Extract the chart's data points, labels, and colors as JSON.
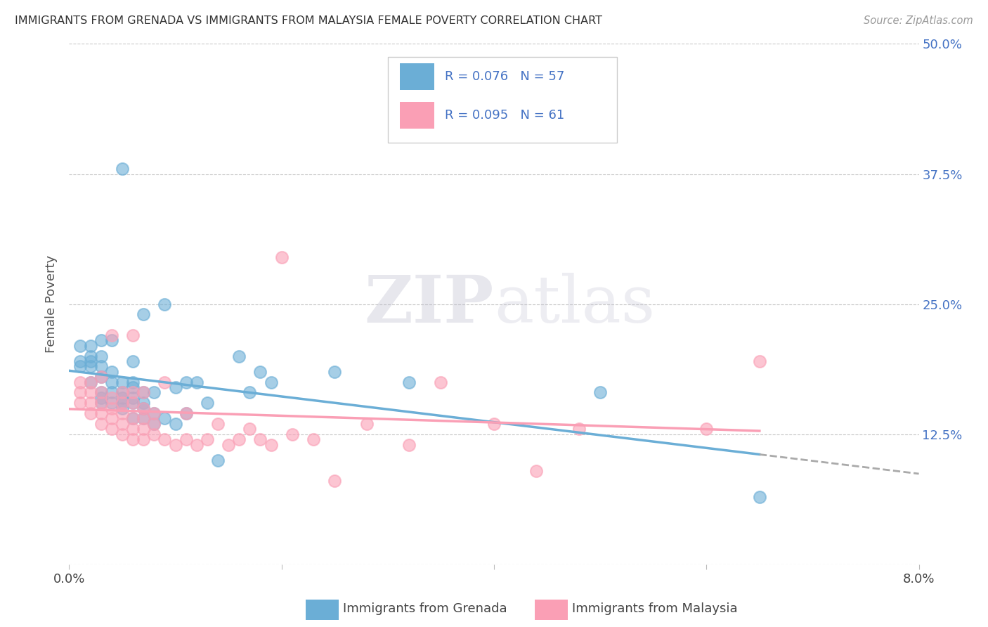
{
  "title": "IMMIGRANTS FROM GRENADA VS IMMIGRANTS FROM MALAYSIA FEMALE POVERTY CORRELATION CHART",
  "source_text": "Source: ZipAtlas.com",
  "ylabel": "Female Poverty",
  "xlim": [
    0.0,
    0.08
  ],
  "ylim": [
    0.0,
    0.5
  ],
  "xticks": [
    0.0,
    0.02,
    0.04,
    0.06,
    0.08
  ],
  "xticklabels": [
    "0.0%",
    "",
    "",
    "",
    "8.0%"
  ],
  "yticks": [
    0.0,
    0.125,
    0.25,
    0.375,
    0.5
  ],
  "yticklabels_right": [
    "",
    "12.5%",
    "25.0%",
    "37.5%",
    "50.0%"
  ],
  "grenada_color": "#6baed6",
  "malaysia_color": "#fa9fb5",
  "grenada_R": 0.076,
  "grenada_N": 57,
  "malaysia_R": 0.095,
  "malaysia_N": 61,
  "watermark": "ZIPatlas",
  "background_color": "#ffffff",
  "grid_color": "#c8c8c8",
  "legend_label_grenada": "Immigrants from Grenada",
  "legend_label_malaysia": "Immigrants from Malaysia",
  "tick_label_color": "#4472c4",
  "grenada_scatter_x": [
    0.001,
    0.001,
    0.001,
    0.002,
    0.002,
    0.002,
    0.002,
    0.002,
    0.003,
    0.003,
    0.003,
    0.003,
    0.003,
    0.003,
    0.003,
    0.004,
    0.004,
    0.004,
    0.004,
    0.004,
    0.005,
    0.005,
    0.005,
    0.005,
    0.005,
    0.005,
    0.006,
    0.006,
    0.006,
    0.006,
    0.006,
    0.006,
    0.007,
    0.007,
    0.007,
    0.007,
    0.007,
    0.008,
    0.008,
    0.008,
    0.009,
    0.009,
    0.01,
    0.01,
    0.011,
    0.011,
    0.012,
    0.013,
    0.014,
    0.016,
    0.017,
    0.018,
    0.019,
    0.025,
    0.032,
    0.05,
    0.065
  ],
  "grenada_scatter_y": [
    0.19,
    0.195,
    0.21,
    0.175,
    0.19,
    0.195,
    0.2,
    0.21,
    0.155,
    0.16,
    0.165,
    0.18,
    0.19,
    0.2,
    0.215,
    0.155,
    0.165,
    0.175,
    0.185,
    0.215,
    0.15,
    0.155,
    0.16,
    0.165,
    0.175,
    0.38,
    0.14,
    0.155,
    0.16,
    0.17,
    0.175,
    0.195,
    0.14,
    0.15,
    0.155,
    0.165,
    0.24,
    0.135,
    0.145,
    0.165,
    0.14,
    0.25,
    0.135,
    0.17,
    0.145,
    0.175,
    0.175,
    0.155,
    0.1,
    0.2,
    0.165,
    0.185,
    0.175,
    0.185,
    0.175,
    0.165,
    0.065
  ],
  "malaysia_scatter_x": [
    0.001,
    0.001,
    0.001,
    0.002,
    0.002,
    0.002,
    0.002,
    0.003,
    0.003,
    0.003,
    0.003,
    0.003,
    0.004,
    0.004,
    0.004,
    0.004,
    0.004,
    0.005,
    0.005,
    0.005,
    0.005,
    0.005,
    0.006,
    0.006,
    0.006,
    0.006,
    0.006,
    0.006,
    0.007,
    0.007,
    0.007,
    0.007,
    0.007,
    0.008,
    0.008,
    0.008,
    0.009,
    0.009,
    0.01,
    0.011,
    0.011,
    0.012,
    0.013,
    0.014,
    0.015,
    0.016,
    0.017,
    0.018,
    0.019,
    0.02,
    0.021,
    0.023,
    0.025,
    0.028,
    0.032,
    0.035,
    0.04,
    0.044,
    0.048,
    0.06,
    0.065
  ],
  "malaysia_scatter_y": [
    0.155,
    0.165,
    0.175,
    0.145,
    0.155,
    0.165,
    0.175,
    0.135,
    0.145,
    0.155,
    0.165,
    0.18,
    0.13,
    0.14,
    0.15,
    0.16,
    0.22,
    0.125,
    0.135,
    0.145,
    0.155,
    0.165,
    0.12,
    0.13,
    0.14,
    0.155,
    0.165,
    0.22,
    0.12,
    0.13,
    0.14,
    0.15,
    0.165,
    0.125,
    0.135,
    0.145,
    0.12,
    0.175,
    0.115,
    0.12,
    0.145,
    0.115,
    0.12,
    0.135,
    0.115,
    0.12,
    0.13,
    0.12,
    0.115,
    0.295,
    0.125,
    0.12,
    0.08,
    0.135,
    0.115,
    0.175,
    0.135,
    0.09,
    0.13,
    0.13,
    0.195
  ]
}
